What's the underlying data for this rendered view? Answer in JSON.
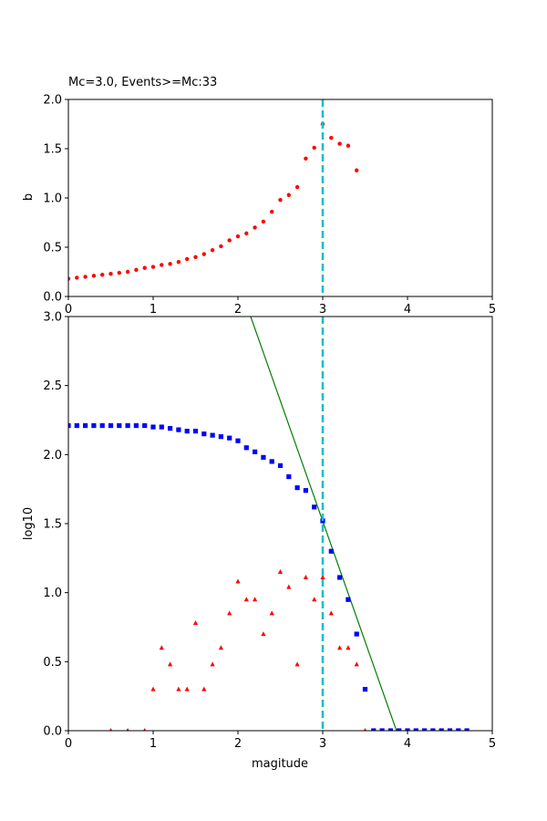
{
  "chart_data": [
    {
      "type": "scatter",
      "title": "Mc=3.0, Events>=Mc:33",
      "xlabel": "",
      "ylabel": "b",
      "xlim": [
        0,
        5
      ],
      "ylim": [
        0,
        2.0
      ],
      "xticks": [
        "0",
        "1",
        "2",
        "3",
        "4",
        "5"
      ],
      "yticks": [
        "0.0",
        "0.5",
        "1.0",
        "1.5",
        "2.0"
      ],
      "grid": false,
      "mc_line": {
        "x": 3.0,
        "color": "#17becf",
        "style": "dashed"
      },
      "series": [
        {
          "marker": "circle",
          "color": "#ff0000",
          "x": [
            0.0,
            0.1,
            0.2,
            0.3,
            0.4,
            0.5,
            0.6,
            0.7,
            0.8,
            0.9,
            1.0,
            1.1,
            1.2,
            1.3,
            1.4,
            1.5,
            1.6,
            1.7,
            1.8,
            1.9,
            2.0,
            2.1,
            2.2,
            2.3,
            2.4,
            2.5,
            2.6,
            2.7,
            2.8,
            2.9,
            3.0,
            3.1,
            3.2,
            3.3,
            3.4
          ],
          "y": [
            0.18,
            0.19,
            0.2,
            0.21,
            0.22,
            0.23,
            0.24,
            0.25,
            0.27,
            0.29,
            0.3,
            0.32,
            0.33,
            0.35,
            0.38,
            0.4,
            0.43,
            0.47,
            0.51,
            0.57,
            0.61,
            0.64,
            0.7,
            0.76,
            0.86,
            0.98,
            1.03,
            1.11,
            1.4,
            1.51,
            1.75,
            1.61,
            1.55,
            1.53,
            1.28
          ]
        }
      ]
    },
    {
      "type": "scatter",
      "title": "",
      "xlabel": "magitude",
      "ylabel": "log10",
      "xlim": [
        0,
        5
      ],
      "ylim": [
        0,
        3.0
      ],
      "xticks": [
        "0",
        "1",
        "2",
        "3",
        "4",
        "5"
      ],
      "yticks": [
        "0.0",
        "0.5",
        "1.0",
        "1.5",
        "2.0",
        "2.5",
        "3.0"
      ],
      "grid": false,
      "mc_line": {
        "x": 3.0,
        "color": "#17becf",
        "style": "dashed"
      },
      "fit_line": {
        "color": "#008000",
        "points": [
          [
            2.15,
            3.0
          ],
          [
            3.87,
            0.0
          ]
        ]
      },
      "series": [
        {
          "marker": "square",
          "color": "#0000ff",
          "x": [
            0.0,
            0.1,
            0.2,
            0.3,
            0.4,
            0.5,
            0.6,
            0.7,
            0.8,
            0.9,
            1.0,
            1.1,
            1.2,
            1.3,
            1.4,
            1.5,
            1.6,
            1.7,
            1.8,
            1.9,
            2.0,
            2.1,
            2.2,
            2.3,
            2.4,
            2.5,
            2.6,
            2.7,
            2.8,
            2.9,
            3.0,
            3.1,
            3.2,
            3.3,
            3.4,
            3.5,
            3.6,
            3.7,
            3.8,
            3.9,
            4.0,
            4.1,
            4.2,
            4.3,
            4.4,
            4.5,
            4.6,
            4.7
          ],
          "y": [
            2.21,
            2.21,
            2.21,
            2.21,
            2.21,
            2.21,
            2.21,
            2.21,
            2.21,
            2.21,
            2.2,
            2.2,
            2.19,
            2.18,
            2.17,
            2.17,
            2.15,
            2.14,
            2.13,
            2.12,
            2.1,
            2.05,
            2.02,
            1.98,
            1.95,
            1.92,
            1.84,
            1.76,
            1.74,
            1.62,
            1.52,
            1.3,
            1.11,
            0.95,
            0.7,
            0.3,
            0.0,
            0.0,
            0.0,
            0.0,
            0.0,
            0.0,
            0.0,
            0.0,
            0.0,
            0.0,
            0.0,
            0.0
          ]
        },
        {
          "marker": "triangle",
          "color": "#ff0000",
          "x": [
            0.5,
            0.7,
            0.9,
            1.0,
            1.1,
            1.2,
            1.3,
            1.4,
            1.5,
            1.6,
            1.7,
            1.8,
            1.9,
            2.0,
            2.1,
            2.2,
            2.3,
            2.4,
            2.5,
            2.6,
            2.7,
            2.8,
            2.9,
            3.0,
            3.1,
            3.2,
            3.3,
            3.4,
            3.5
          ],
          "y": [
            0.0,
            0.0,
            0.0,
            0.3,
            0.6,
            0.48,
            0.3,
            0.3,
            0.78,
            0.3,
            0.48,
            0.6,
            0.85,
            1.08,
            0.95,
            0.95,
            0.7,
            0.85,
            1.15,
            1.04,
            0.48,
            1.11,
            0.95,
            1.11,
            0.85,
            0.6,
            0.6,
            0.48,
            0.0
          ]
        }
      ]
    }
  ]
}
